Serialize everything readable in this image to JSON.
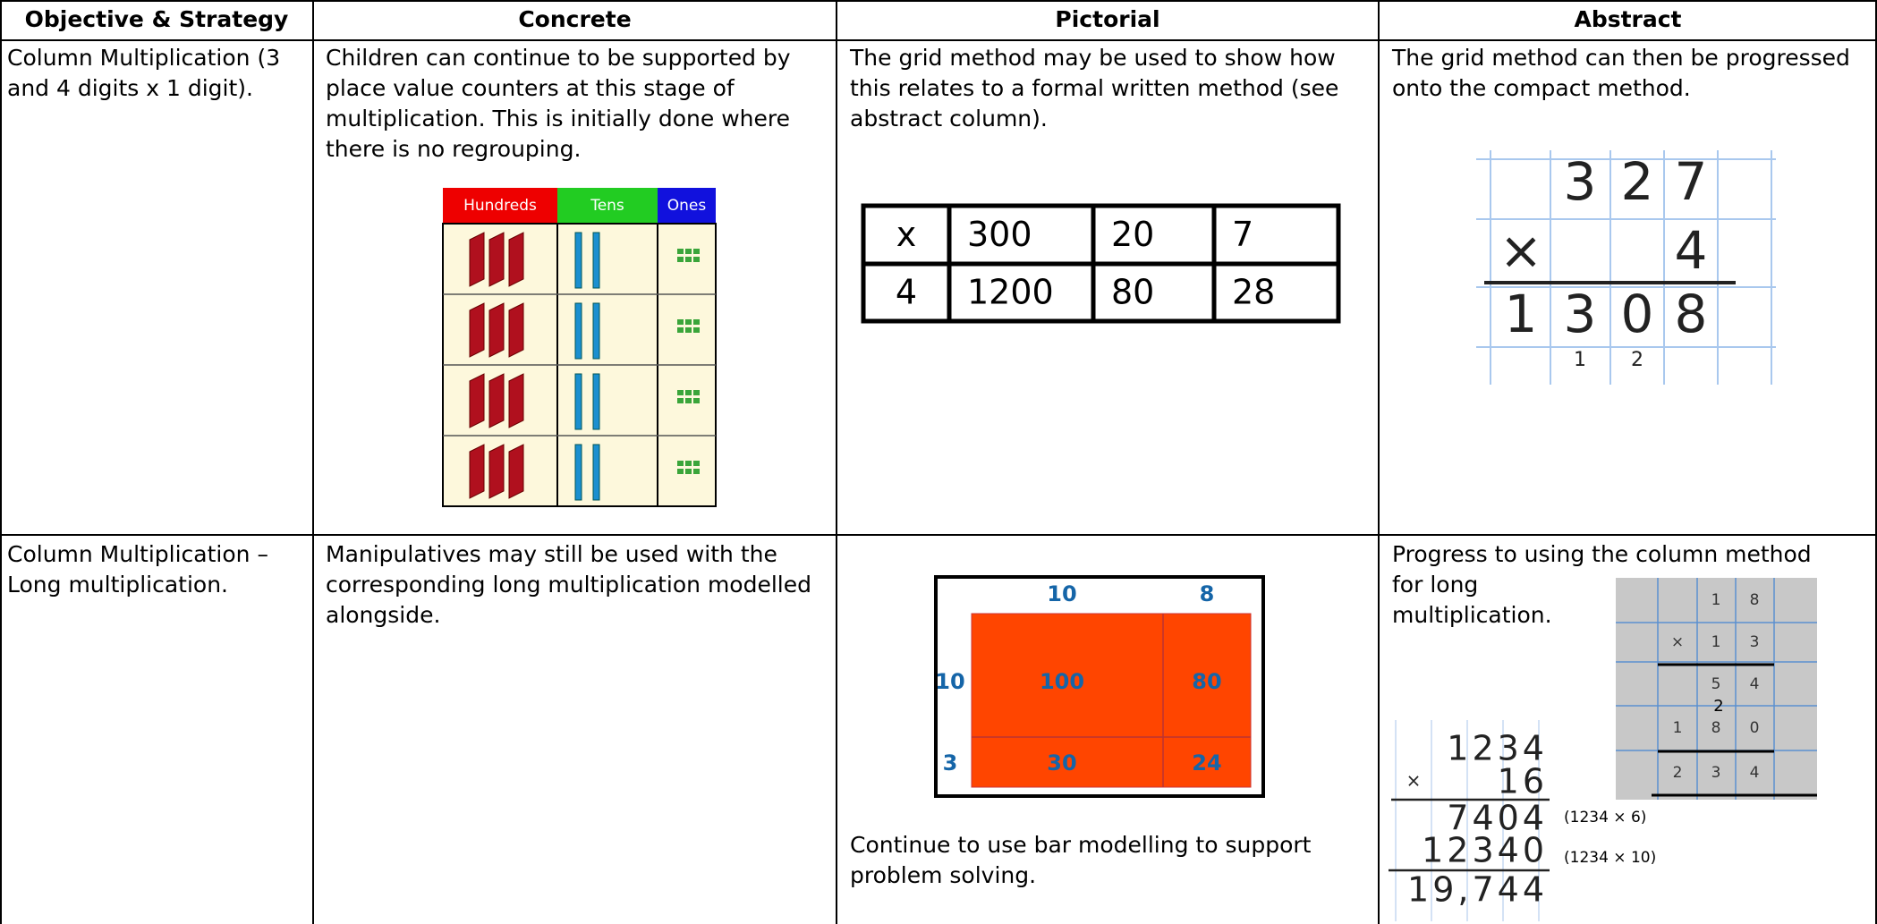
{
  "header": [
    "Objective & Strategy",
    "Concrete",
    "Pictorial",
    "Abstract"
  ],
  "rows": [
    {
      "objective": "Column Multiplication (3 and 4 digits x 1 digit).",
      "concrete": "Children can continue to be supported by place value counters at this stage of multiplication. This is initially done where there is no regrouping.",
      "pictorial": "The grid method may be used to show how this relates to a formal written method (see abstract column).",
      "abstract": "The grid method can then be progressed onto the compact method."
    },
    {
      "objective": "Column Multiplication – Long multiplication.",
      "concrete": "Manipulatives may still be used with the corresponding long multiplication modelled alongside.",
      "pictorial": "Continue to use bar modelling to support problem solving.",
      "abstract": [
        "Progress to using the column method",
        "for long",
        "multiplication."
      ]
    }
  ],
  "figures": {
    "place_value": {
      "headers": [
        "Hundreds",
        "Tens",
        "Ones"
      ]
    },
    "grid_method": {
      "rows": [
        [
          "x",
          "300",
          "20",
          "7"
        ],
        [
          "4",
          "1200",
          "80",
          "28"
        ]
      ]
    },
    "compact": {
      "rows": [
        [
          null,
          "3",
          "2",
          "7"
        ],
        [
          "×",
          null,
          null,
          "4"
        ],
        [
          "1",
          "3",
          "0",
          "8"
        ],
        [
          null,
          "1",
          "2",
          null
        ]
      ]
    },
    "area_model": {
      "col_headers": [
        "10",
        "8"
      ],
      "row_headers": [
        "10",
        "3"
      ],
      "cells": [
        [
          "100",
          "80"
        ],
        [
          "30",
          "24"
        ]
      ]
    },
    "column_grid": {
      "rows": [
        [
          null,
          "1",
          "8"
        ],
        [
          "×",
          "1",
          "3"
        ],
        [
          null,
          "5",
          "4"
        ],
        [
          "1",
          "8",
          "0"
        ],
        [
          "2",
          "3",
          "4"
        ]
      ],
      "carry": "2"
    },
    "handwritten": {
      "sign": "×",
      "rows": [
        "1234",
        "16",
        "7404",
        "12340",
        "19,744"
      ],
      "notes": [
        "(1234 × 6)",
        "(1234 × 10)"
      ]
    }
  }
}
